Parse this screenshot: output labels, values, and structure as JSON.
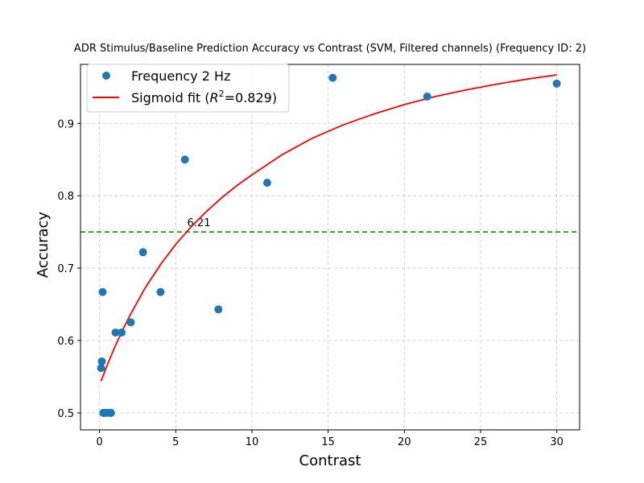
{
  "chart_data": {
    "type": "scatter",
    "title": "ADR Stimulus/Baseline Prediction Accuracy vs Contrast (SVM, Filtered channels) (Frequency ID: 2)",
    "xlabel": "Contrast",
    "ylabel": "Accuracy",
    "xlim": [
      -1.25,
      31.5
    ],
    "ylim": [
      0.4765,
      0.9815
    ],
    "xticks": [
      0,
      5,
      10,
      15,
      20,
      25,
      30
    ],
    "yticks": [
      0.5,
      0.6,
      0.7,
      0.8,
      0.9
    ],
    "xtick_labels": [
      "0",
      "5",
      "10",
      "15",
      "20",
      "25",
      "30"
    ],
    "ytick_labels": [
      "0.5",
      "0.6",
      "0.7",
      "0.8",
      "0.9"
    ],
    "grid": true,
    "legend_position": "top-left",
    "series": [
      {
        "name": "Frequency 2 Hz",
        "kind": "scatter",
        "color": "#1f77b4",
        "x": [
          0.1,
          0.15,
          0.2,
          0.25,
          0.35,
          0.5,
          0.7,
          0.75,
          1.05,
          1.45,
          2.05,
          2.85,
          4.0,
          5.6,
          7.8,
          11.0,
          15.3,
          21.5,
          30.0
        ],
        "y": [
          0.562,
          0.571,
          0.667,
          0.5,
          0.5,
          0.5,
          0.5,
          0.5,
          0.611,
          0.611,
          0.625,
          0.722,
          0.667,
          0.85,
          0.643,
          0.818,
          0.963,
          0.937,
          0.955
        ]
      },
      {
        "name": "Sigmoid fit (R²=0.829)",
        "legend_label_prefix": "Sigmoid fit (",
        "legend_label_r": "R",
        "legend_label_sup": "2",
        "legend_label_suffix": "=0.829)",
        "kind": "line",
        "color": "#ff0000",
        "x": [
          0.1,
          0.5,
          1,
          1.5,
          2,
          3,
          4,
          5,
          6,
          7,
          8,
          9,
          10,
          12,
          14,
          16,
          18,
          20,
          22,
          24,
          26,
          28,
          30
        ],
        "y": [
          0.544,
          0.566,
          0.591,
          0.614,
          0.635,
          0.673,
          0.705,
          0.733,
          0.757,
          0.778,
          0.797,
          0.814,
          0.829,
          0.857,
          0.88,
          0.898,
          0.913,
          0.926,
          0.937,
          0.946,
          0.954,
          0.961,
          0.967
        ]
      }
    ],
    "threshold": {
      "y": 0.75,
      "color": "#008000",
      "label": "6.21",
      "label_x": 5.75
    }
  }
}
